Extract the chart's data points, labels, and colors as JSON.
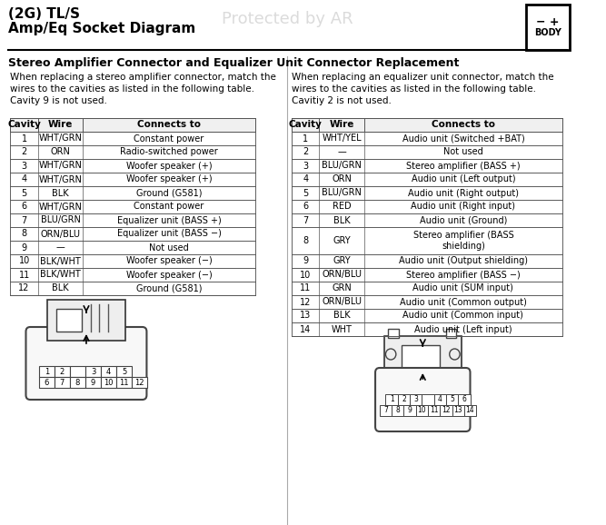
{
  "title_line1": "(2G) TL/S",
  "title_line2": "Amp/Eq Socket Diagram",
  "watermark": "Protected by AR",
  "section_title": "Stereo Amplifier Connector and Equalizer Unit Connector Replacement",
  "left_intro": "When replacing a stereo amplifier connector, match the\nwires to the cavities as listed in the following table.\nCavity 9 is not used.",
  "right_intro": "When replacing an equalizer unit connector, match the\nwires to the cavities as listed in the following table.\nCavitiy 2 is not used.",
  "left_table": {
    "headers": [
      "Cavity",
      "Wire",
      "Connects to"
    ],
    "rows": [
      [
        "1",
        "WHT/GRN",
        "Constant power"
      ],
      [
        "2",
        "ORN",
        "Radio-switched power"
      ],
      [
        "3",
        "WHT/GRN",
        "Woofer speaker (+)"
      ],
      [
        "4",
        "WHT/GRN",
        "Woofer speaker (+)"
      ],
      [
        "5",
        "BLK",
        "Ground (G581)"
      ],
      [
        "6",
        "WHT/GRN",
        "Constant power"
      ],
      [
        "7",
        "BLU/GRN",
        "Equalizer unit (BASS +)"
      ],
      [
        "8",
        "ORN/BLU",
        "Equalizer unit (BASS −)"
      ],
      [
        "9",
        "—",
        "Not used"
      ],
      [
        "10",
        "BLK/WHT",
        "Woofer speaker (−)"
      ],
      [
        "11",
        "BLK/WHT",
        "Woofer speaker (−)"
      ],
      [
        "12",
        "BLK",
        "Ground (G581)"
      ]
    ]
  },
  "right_table": {
    "headers": [
      "Cavity",
      "Wire",
      "Connects to"
    ],
    "rows": [
      [
        "1",
        "WHT/YEL",
        "Audio unit (Switched +BAT)"
      ],
      [
        "2",
        "—",
        "Not used"
      ],
      [
        "3",
        "BLU/GRN",
        "Stereo amplifier (BASS +)"
      ],
      [
        "4",
        "ORN",
        "Audio unit (Left output)"
      ],
      [
        "5",
        "BLU/GRN",
        "Audio unit (Right output)"
      ],
      [
        "6",
        "RED",
        "Audio unit (Right input)"
      ],
      [
        "7",
        "BLK",
        "Audio unit (Ground)"
      ],
      [
        "8",
        "GRY",
        "Stereo amplifier (BASS\nshielding)"
      ],
      [
        "9",
        "GRY",
        "Audio unit (Output shielding)"
      ],
      [
        "10",
        "ORN/BLU",
        "Stereo amplifier (BASS −)"
      ],
      [
        "11",
        "GRN",
        "Audio unit (SUM input)"
      ],
      [
        "12",
        "ORN/BLU",
        "Audio unit (Common output)"
      ],
      [
        "13",
        "BLK",
        "Audio unit (Common input)"
      ],
      [
        "14",
        "WHT",
        "Audio unit (Left input)"
      ]
    ]
  },
  "bg_color": "#ffffff",
  "text_color": "#000000",
  "table_border_color": "#555555",
  "header_bg": "#e0e0e0"
}
